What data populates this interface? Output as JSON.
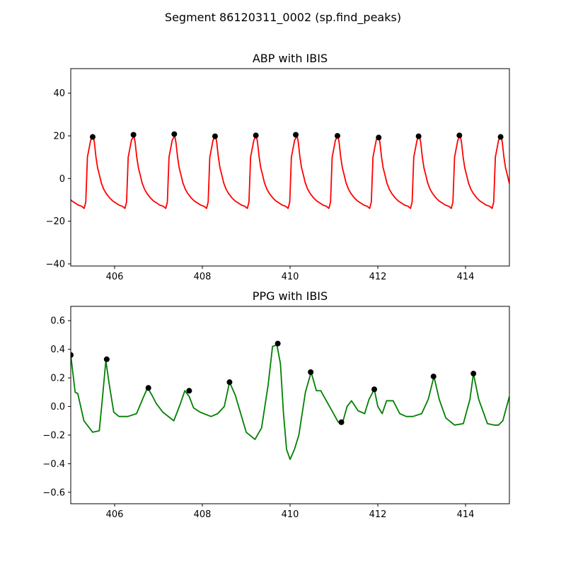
{
  "figure": {
    "suptitle": "Segment 86120311_0002 (sp.find_peaks)"
  },
  "chart_data": [
    {
      "type": "line",
      "title": "ABP with IBIS",
      "xlabel": "",
      "ylabel": "",
      "xlim": [
        405,
        415
      ],
      "ylim": [
        -41,
        51.5
      ],
      "xticks": [
        406,
        408,
        410,
        412,
        414
      ],
      "yticks": [
        -40,
        -20,
        0,
        20,
        40
      ],
      "line_color": "#ff0000",
      "peak_color": "#000000",
      "grid": false,
      "legend": "none",
      "waveform": {
        "start": 404.58,
        "period": 0.93,
        "template": [
          [
            0.0,
            20.0
          ],
          [
            0.03,
            17.0
          ],
          [
            0.07,
            10.0
          ],
          [
            0.11,
            5.0
          ],
          [
            0.15,
            2.0
          ],
          [
            0.2,
            -2.0
          ],
          [
            0.26,
            -5.0
          ],
          [
            0.32,
            -7.0
          ],
          [
            0.4,
            -9.0
          ],
          [
            0.48,
            -10.5
          ],
          [
            0.56,
            -11.5
          ],
          [
            0.64,
            -12.5
          ],
          [
            0.72,
            -13.0
          ],
          [
            0.78,
            -14.0
          ],
          [
            0.82,
            -11.0
          ],
          [
            0.86,
            10.0
          ],
          [
            0.9,
            14.0
          ],
          [
            0.94,
            18.0
          ],
          [
            1.0,
            20.0
          ]
        ]
      },
      "peaks": {
        "x": [
          405.5,
          406.43,
          407.36,
          408.29,
          409.22,
          410.13,
          411.08,
          412.02,
          412.93,
          413.86,
          414.8
        ],
        "y": [
          19.5,
          20.5,
          20.8,
          19.8,
          20.2,
          20.5,
          20.0,
          19.2,
          19.8,
          20.2,
          19.5
        ]
      }
    },
    {
      "type": "line",
      "title": "PPG with IBIS",
      "xlabel": "",
      "ylabel": "",
      "xlim": [
        405,
        415
      ],
      "ylim": [
        -0.68,
        0.7
      ],
      "xticks": [
        406,
        408,
        410,
        412,
        414
      ],
      "yticks": [
        -0.6,
        -0.4,
        -0.2,
        0.0,
        0.2,
        0.4,
        0.6
      ],
      "line_color": "#008000",
      "peak_color": "#000000",
      "grid": false,
      "legend": "none",
      "curve": {
        "x": [
          405.0,
          405.1,
          405.16,
          405.3,
          405.5,
          405.65,
          405.72,
          405.8,
          405.88,
          405.98,
          406.1,
          406.3,
          406.5,
          406.65,
          406.75,
          406.85,
          406.95,
          407.1,
          407.35,
          407.5,
          407.6,
          407.7,
          407.8,
          407.95,
          408.2,
          408.35,
          408.5,
          408.62,
          408.75,
          409.0,
          409.2,
          409.35,
          409.5,
          409.6,
          409.7,
          409.78,
          409.85,
          409.92,
          410.0,
          410.1,
          410.2,
          410.35,
          410.48,
          410.6,
          410.7,
          410.9,
          411.1,
          411.2,
          411.3,
          411.4,
          411.55,
          411.7,
          411.8,
          411.92,
          412.0,
          412.1,
          412.2,
          412.35,
          412.5,
          412.65,
          412.8,
          413.0,
          413.15,
          413.28,
          413.4,
          413.55,
          413.75,
          413.95,
          414.1,
          414.18,
          414.3,
          414.5,
          414.65,
          414.75,
          414.85,
          415.0
        ],
        "y": [
          0.36,
          0.1,
          0.09,
          -0.1,
          -0.18,
          -0.17,
          0.05,
          0.32,
          0.15,
          -0.04,
          -0.07,
          -0.07,
          -0.05,
          0.06,
          0.13,
          0.08,
          0.02,
          -0.04,
          -0.1,
          0.02,
          0.11,
          0.07,
          -0.01,
          -0.04,
          -0.07,
          -0.05,
          0.0,
          0.17,
          0.08,
          -0.18,
          -0.23,
          -0.15,
          0.15,
          0.42,
          0.43,
          0.3,
          -0.05,
          -0.3,
          -0.37,
          -0.3,
          -0.2,
          0.1,
          0.24,
          0.11,
          0.11,
          0.0,
          -0.11,
          -0.11,
          0.0,
          0.04,
          -0.03,
          -0.05,
          0.05,
          0.12,
          0.0,
          -0.05,
          0.04,
          0.04,
          -0.05,
          -0.07,
          -0.07,
          -0.05,
          0.05,
          0.21,
          0.05,
          -0.08,
          -0.13,
          -0.12,
          0.05,
          0.23,
          0.05,
          -0.12,
          -0.13,
          -0.13,
          -0.1,
          0.07
        ]
      },
      "peaks": {
        "x": [
          405.0,
          405.82,
          406.77,
          407.7,
          408.62,
          409.72,
          410.47,
          411.17,
          411.92,
          413.27,
          414.18
        ],
        "y": [
          0.36,
          0.33,
          0.13,
          0.11,
          0.17,
          0.44,
          0.24,
          -0.11,
          0.12,
          0.21,
          0.23
        ]
      }
    }
  ]
}
